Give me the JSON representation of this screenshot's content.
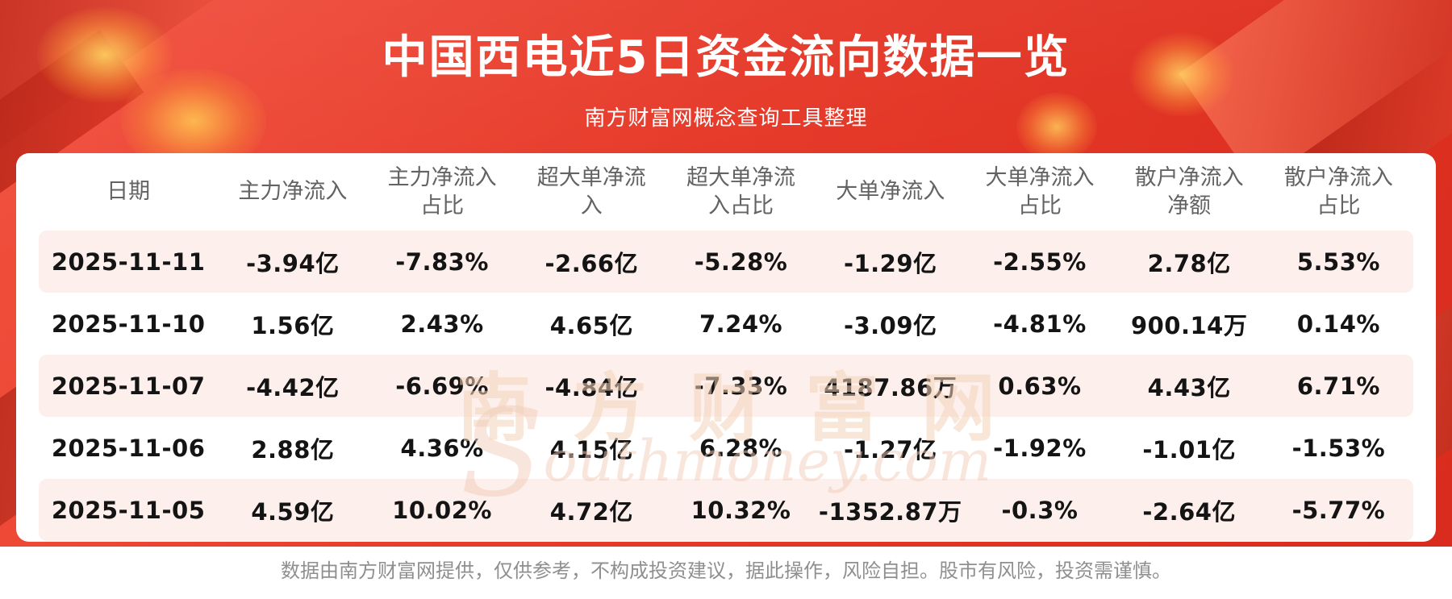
{
  "page": {
    "title": "中国西电近5日资金流向数据一览",
    "subtitle": "南方财富网概念查询工具整理"
  },
  "chart_data": {
    "type": "table",
    "title": "中国西电近5日资金流向数据一览",
    "columns": [
      "日期",
      "主力净流入",
      "主力净流入占比",
      "超大单净流入",
      "超大单净流入占比",
      "大单净流入",
      "大单净流入占比",
      "散户净流入净额",
      "散户净流入占比"
    ],
    "rows": [
      [
        "2025-11-11",
        "-3.94亿",
        "-7.83%",
        "-2.66亿",
        "-5.28%",
        "-1.29亿",
        "-2.55%",
        "2.78亿",
        "5.53%"
      ],
      [
        "2025-11-10",
        "1.56亿",
        "2.43%",
        "4.65亿",
        "7.24%",
        "-3.09亿",
        "-4.81%",
        "900.14万",
        "0.14%"
      ],
      [
        "2025-11-07",
        "-4.42亿",
        "-6.69%",
        "-4.84亿",
        "-7.33%",
        "4187.86万",
        "0.63%",
        "4.43亿",
        "6.71%"
      ],
      [
        "2025-11-06",
        "2.88亿",
        "4.36%",
        "4.15亿",
        "6.28%",
        "-1.27亿",
        "-1.92%",
        "-1.01亿",
        "-1.53%"
      ],
      [
        "2025-11-05",
        "4.59亿",
        "10.02%",
        "4.72亿",
        "10.32%",
        "-1352.87万",
        "-0.3%",
        "-2.64亿",
        "-5.77%"
      ]
    ]
  },
  "watermark": {
    "cn": "南方财富网",
    "en_initial": "S",
    "en_rest": "outhmoney.com"
  },
  "footer": {
    "disclaimer": "数据由南方财富网提供，仅供参考，不构成投资建议，据此操作，风险自担。股市有风险，投资需谨慎。"
  },
  "colors": {
    "hero_red": "#e63a2a",
    "row_pink": "#fdefeb",
    "row_white": "#ffffff",
    "title_white": "#ffffff",
    "header_text": "#636363",
    "cell_text": "#141414",
    "footer_text": "#8f8f8f",
    "gold_glow": "#ffcd5f"
  }
}
